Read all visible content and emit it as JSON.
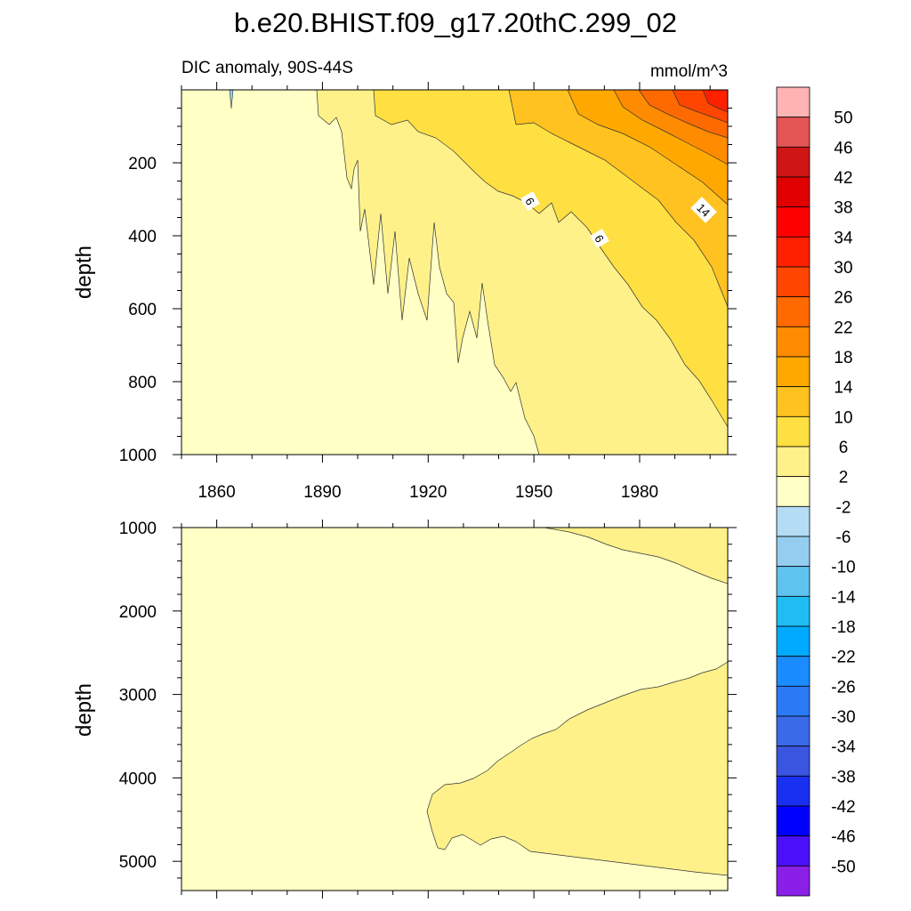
{
  "chart_data": [
    {
      "type": "contour",
      "title": "b.e20.BHIST.f09_g17.20thC.299_02",
      "subtitle_left": "DIC anomaly, 90S-44S",
      "units": "mmol/m^3",
      "ylabel": "depth",
      "xlim": [
        1850,
        2005
      ],
      "ylim": [
        1000,
        0
      ],
      "x_ticks": [
        1860,
        1890,
        1920,
        1950,
        1980
      ],
      "x_tick_labels": [
        "1860",
        "1890",
        "1920",
        "1950",
        "1980"
      ],
      "y_ticks": [
        200,
        400,
        600,
        800,
        1000
      ],
      "y_tick_labels": [
        "200",
        "400",
        "600",
        "800",
        "1000"
      ],
      "contour_labels": [
        "6",
        "6",
        "14"
      ],
      "bands": [
        {
          "range": [
            -2,
            2
          ],
          "color": "#ffffc6"
        },
        {
          "range": [
            2,
            6
          ],
          "color": "#fff18a"
        },
        {
          "range": [
            6,
            10
          ],
          "color": "#ffe043"
        },
        {
          "range": [
            10,
            14
          ],
          "color": "#ffc220"
        },
        {
          "range": [
            14,
            18
          ],
          "color": "#ffa900"
        },
        {
          "range": [
            18,
            22
          ],
          "color": "#ff8b00"
        },
        {
          "range": [
            22,
            26
          ],
          "color": "#ff6a00"
        },
        {
          "range": [
            26,
            30
          ],
          "color": "#ff4500"
        },
        {
          "range": [
            30,
            34
          ],
          "color": "#ff2000"
        }
      ]
    },
    {
      "type": "contour",
      "units": "mmol/m^3",
      "ylabel": "depth",
      "xlim": [
        1850,
        2005
      ],
      "ylim": [
        5350,
        1000
      ],
      "y_ticks": [
        1000,
        2000,
        3000,
        4000,
        5000
      ],
      "y_tick_labels": [
        "1000",
        "2000",
        "3000",
        "4000",
        "5000"
      ],
      "bands": [
        {
          "range": [
            -2,
            2
          ],
          "color": "#ffffc6"
        },
        {
          "range": [
            2,
            6
          ],
          "color": "#fff18a"
        }
      ]
    }
  ],
  "colorbar": {
    "labels": [
      "50",
      "46",
      "42",
      "38",
      "34",
      "30",
      "26",
      "22",
      "18",
      "14",
      "10",
      "6",
      "2",
      "-2",
      "-6",
      "-10",
      "-14",
      "-18",
      "-22",
      "-26",
      "-30",
      "-34",
      "-38",
      "-42",
      "-46",
      "-50"
    ],
    "colors": [
      "#ffb3b3",
      "#e45555",
      "#d01515",
      "#e00000",
      "#ff0000",
      "#ff2000",
      "#ff4500",
      "#ff6a00",
      "#ff8b00",
      "#ffa900",
      "#ffc220",
      "#ffe043",
      "#fff18a",
      "#ffffc6",
      "#b4dcf5",
      "#94cdef",
      "#5ec4ef",
      "#20bdf4",
      "#00aaff",
      "#1a8cff",
      "#2a7af5",
      "#3a6ae8",
      "#3a56e0",
      "#1a30f0",
      "#0000ff",
      "#4a10f8",
      "#8a20e8"
    ]
  }
}
